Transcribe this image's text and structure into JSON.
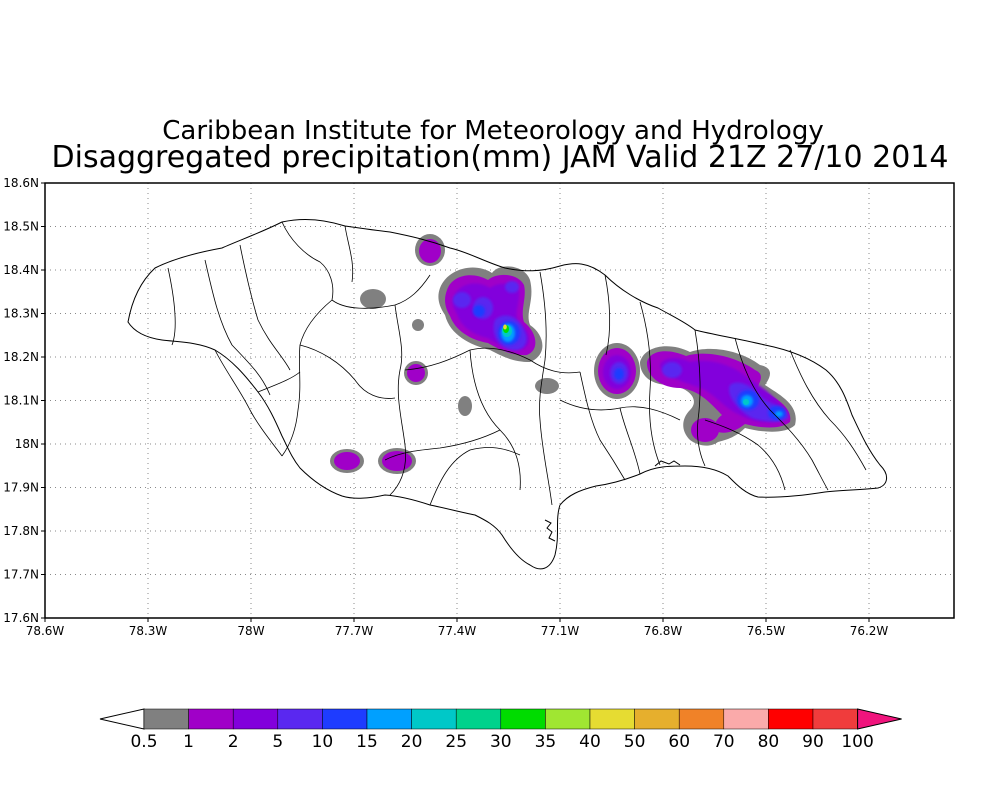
{
  "title_line1": "Caribbean Institute for Meteorology and Hydrology",
  "title_line2": "Disaggregated precipitation(mm) JAM Valid 21Z 27/10 2014",
  "lon_ticks": [
    "78.6W",
    "78.3W",
    "78W",
    "77.7W",
    "77.4W",
    "77.1W",
    "76.8W",
    "76.5W",
    "76.2W"
  ],
  "lat_ticks": [
    "18.6N",
    "18.5N",
    "18.4N",
    "18.3N",
    "18.2N",
    "18.1N",
    "18N",
    "17.9N",
    "17.8N",
    "17.7N",
    "17.6N"
  ],
  "colorbar": {
    "labels": [
      "0.5",
      "1",
      "2",
      "5",
      "10",
      "15",
      "20",
      "25",
      "30",
      "35",
      "40",
      "50",
      "60",
      "70",
      "80",
      "90",
      "100"
    ],
    "colors": [
      "#808080",
      "#a000c8",
      "#8200dc",
      "#5a28f0",
      "#1e3cff",
      "#00a0ff",
      "#00c8c8",
      "#00d28c",
      "#00dc00",
      "#a0e632",
      "#e6dc32",
      "#e6af2d",
      "#f08228",
      "#faaaaa",
      "#ff0000",
      "#f03c3c"
    ],
    "under_color": "#ffffff",
    "over_color": "#f0147d"
  },
  "colors": {
    "grid": "#888888",
    "coast": "#000000"
  }
}
